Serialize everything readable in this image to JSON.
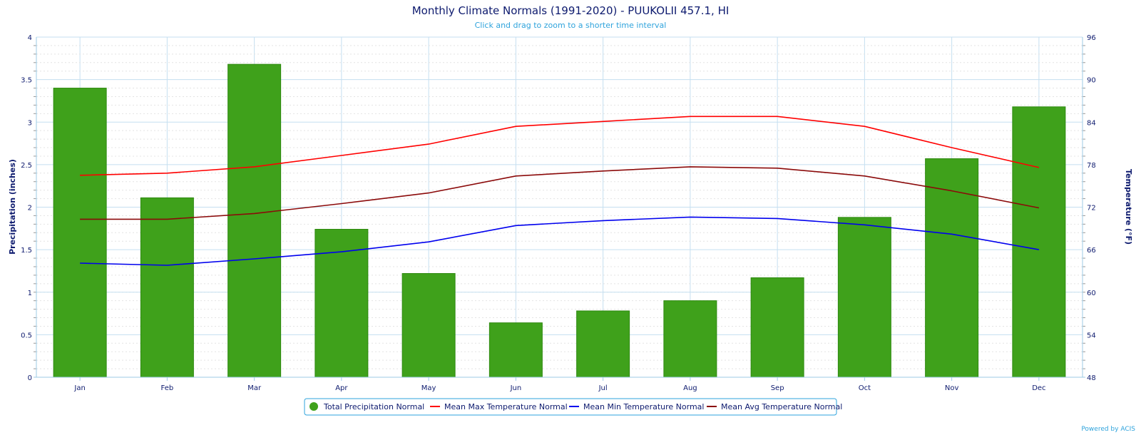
{
  "chart_data": {
    "type": "bar",
    "title": "Monthly Climate Normals (1991-2020) - PUUKOLII 457.1, HI",
    "subtitle": "Click and drag to zoom to a shorter time interval",
    "credit": "Powered by ACIS",
    "categories": [
      "Jan",
      "Feb",
      "Mar",
      "Apr",
      "May",
      "Jun",
      "Jul",
      "Aug",
      "Sep",
      "Oct",
      "Nov",
      "Dec"
    ],
    "y_left": {
      "label": "Precipitation (inches)",
      "range": [
        0,
        4
      ],
      "ticks": [
        "0",
        "0.5",
        "1",
        "1.5",
        "2",
        "2.5",
        "3",
        "3.5",
        "4"
      ]
    },
    "y_right": {
      "label": "Temperature (°F)",
      "range": [
        48,
        96
      ],
      "ticks": [
        "48",
        "54",
        "60",
        "66",
        "72",
        "78",
        "84",
        "90",
        "96"
      ]
    },
    "grid": true,
    "legend_placement": "bottom-center",
    "series": [
      {
        "name": "Total Precipitation Normal",
        "type": "bar",
        "axis": "left",
        "color": "#3fa11b",
        "values": [
          3.4,
          2.11,
          3.68,
          1.74,
          1.22,
          0.64,
          0.78,
          0.9,
          1.17,
          1.88,
          2.57,
          3.18
        ]
      },
      {
        "name": "Mean Max Temperature Normal",
        "type": "line",
        "axis": "right",
        "color": "#ff0000",
        "values": [
          76.5,
          76.8,
          77.7,
          79.3,
          80.9,
          83.4,
          84.1,
          84.8,
          84.8,
          83.4,
          80.4,
          77.6
        ]
      },
      {
        "name": "Mean Min Temperature Normal",
        "type": "line",
        "axis": "right",
        "color": "#0000ee",
        "values": [
          64.1,
          63.8,
          64.7,
          65.7,
          67.1,
          69.4,
          70.1,
          70.6,
          70.4,
          69.5,
          68.2,
          66.0
        ]
      },
      {
        "name": "Mean Avg Temperature Normal",
        "type": "line",
        "axis": "right",
        "color": "#8b0a0a",
        "values": [
          70.3,
          70.3,
          71.1,
          72.5,
          74.0,
          76.4,
          77.1,
          77.7,
          77.5,
          76.4,
          74.3,
          71.9
        ]
      }
    ]
  }
}
